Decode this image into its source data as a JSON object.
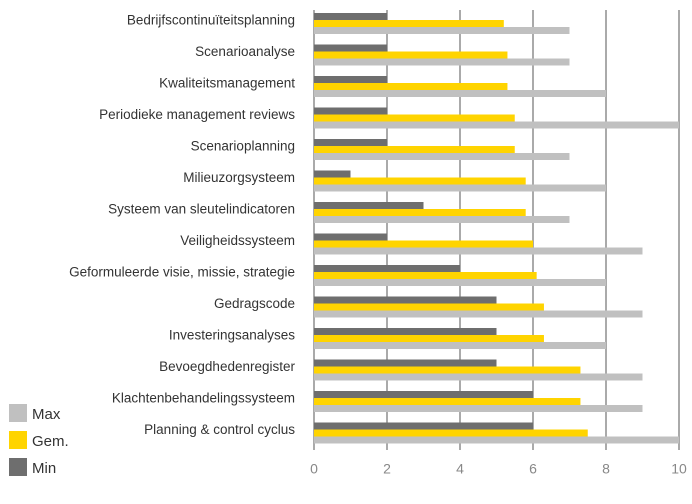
{
  "chart_data": {
    "type": "hbar",
    "categories": [
      "Bedrijfscontinuïteitsplanning",
      "Scenarioanalyse",
      "Kwaliteitsmanagement",
      "Periodieke management reviews",
      "Scenarioplanning",
      "Milieuzorgsysteem",
      "Systeem van sleutelindicatoren",
      "Veiligheidssysteem",
      "Geformuleerde visie, missie, strategie",
      "Gedragscode",
      "Investeringsanalyses",
      "Bevoegdhedenregister",
      "Klachtenbehandelingssysteem",
      "Planning & control cyclus"
    ],
    "series": [
      {
        "name": "Max",
        "color": "#c0c0c0",
        "values": [
          7,
          7,
          8,
          10,
          7,
          8,
          7,
          9,
          8,
          9,
          8,
          9,
          9,
          10
        ]
      },
      {
        "name": "Gem.",
        "color": "#ffd400",
        "values": [
          5.2,
          5.3,
          5.3,
          5.5,
          5.5,
          5.8,
          5.8,
          6.0,
          6.1,
          6.3,
          6.3,
          7.3,
          7.3,
          7.5
        ]
      },
      {
        "name": "Min",
        "color": "#6e6e6e",
        "values": [
          2,
          2,
          2,
          2,
          2,
          1,
          3,
          2,
          4,
          5,
          5,
          5,
          6,
          6
        ]
      }
    ],
    "xlim": [
      0,
      10
    ],
    "xticks": [
      0,
      2,
      4,
      6,
      8,
      10
    ],
    "grid": true,
    "legend": "bottom-left"
  }
}
